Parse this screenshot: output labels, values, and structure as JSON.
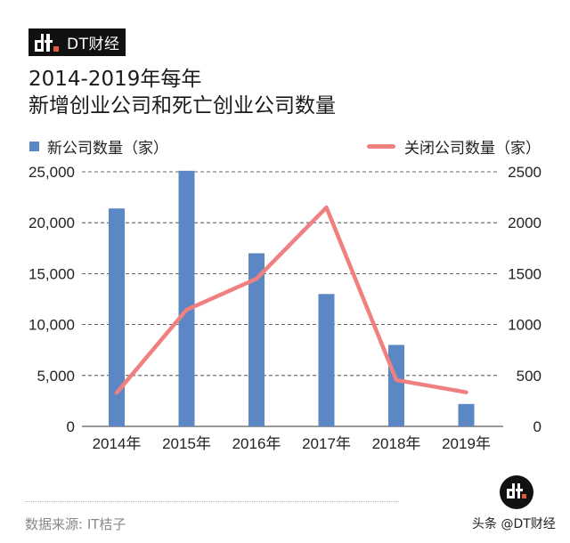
{
  "brand": {
    "name": "DT财经",
    "accent": "#e05a3c"
  },
  "title": {
    "line1": "2014-2019年每年",
    "line2": "新增创业公司和死亡创业公司数量"
  },
  "legend": {
    "bars_label": "新公司数量（家）",
    "line_label": "关闭公司数量（家）"
  },
  "colors": {
    "bar": "#5b88c4",
    "line": "#f07f80",
    "grid": "#333333"
  },
  "footer": {
    "source": "数据来源: IT桔子",
    "watermark": "头条 @DT财经"
  },
  "chart_data": {
    "type": "bar+line",
    "title": "2014-2019年每年 新增创业公司和死亡创业公司数量",
    "categories": [
      "2014年",
      "2015年",
      "2016年",
      "2017年",
      "2018年",
      "2019年"
    ],
    "series": [
      {
        "name": "新公司数量（家）",
        "type": "bar",
        "axis": "left",
        "values": [
          21400,
          25100,
          17000,
          13000,
          8000,
          2200
        ]
      },
      {
        "name": "关闭公司数量（家）",
        "type": "line",
        "axis": "right",
        "values": [
          330,
          1145,
          1450,
          2150,
          455,
          335
        ]
      }
    ],
    "left_axis": {
      "ticks": [
        "0",
        "5,000",
        "10,000",
        "15,000",
        "20,000",
        "25,000"
      ],
      "range": [
        0,
        25000
      ]
    },
    "right_axis": {
      "ticks": [
        "0",
        "500",
        "1000",
        "1500",
        "2000",
        "2500"
      ],
      "range": [
        0,
        2500
      ]
    },
    "xlabel": "",
    "ylabel": "",
    "grid": "dashed horizontal",
    "legend_position": "top"
  }
}
